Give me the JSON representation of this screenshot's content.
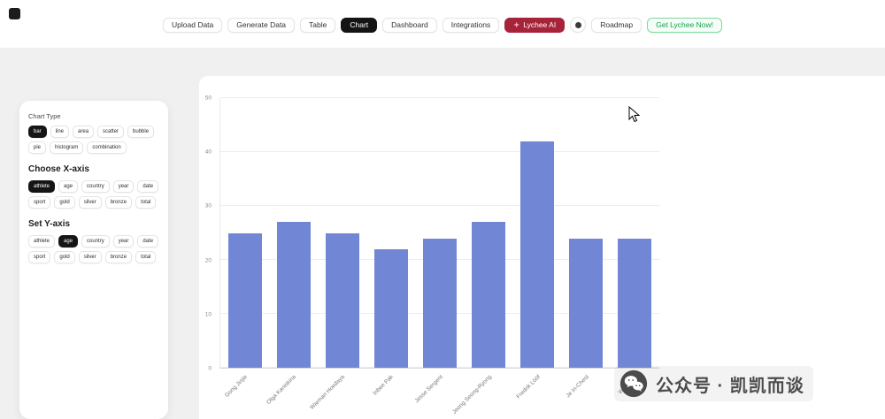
{
  "colors": {
    "bar_blue": "#7186d5",
    "active_black": "#141414",
    "ai_red": "#a62339",
    "cta_green": "#16a34a",
    "background_gray": "#f0f0f1"
  },
  "nav": {
    "buttons": [
      {
        "name": "upload-data",
        "label": "Upload Data",
        "style": "default"
      },
      {
        "name": "generate-data",
        "label": "Generate Data",
        "style": "default"
      },
      {
        "name": "table",
        "label": "Table",
        "style": "default"
      },
      {
        "name": "chart",
        "label": "Chart",
        "style": "active"
      },
      {
        "name": "dashboard",
        "label": "Dashboard",
        "style": "default"
      },
      {
        "name": "integrations",
        "label": "Integrations",
        "style": "default"
      },
      {
        "name": "lychee-ai",
        "label": "Lychee AI",
        "style": "ai",
        "icon": "sparkle-icon"
      },
      {
        "name": "round-icon",
        "label": "",
        "style": "icon",
        "icon": "dot-icon"
      },
      {
        "name": "roadmap",
        "label": "Roadmap",
        "style": "default"
      },
      {
        "name": "get-lychee",
        "label": "Get Lychee Now!",
        "style": "cta"
      }
    ]
  },
  "sidebar": {
    "chart_type_label": "Chart Type",
    "chart_types": [
      {
        "label": "bar",
        "selected": true
      },
      {
        "label": "line",
        "selected": false
      },
      {
        "label": "area",
        "selected": false
      },
      {
        "label": "scatter",
        "selected": false
      },
      {
        "label": "bubble",
        "selected": false
      },
      {
        "label": "pie",
        "selected": false
      },
      {
        "label": "histogram",
        "selected": false
      },
      {
        "label": "combination",
        "selected": false
      }
    ],
    "x_axis_heading": "Choose X-axis",
    "x_fields": [
      {
        "label": "athlete",
        "selected": true
      },
      {
        "label": "age",
        "selected": false
      },
      {
        "label": "country",
        "selected": false
      },
      {
        "label": "year",
        "selected": false
      },
      {
        "label": "date",
        "selected": false
      },
      {
        "label": "sport",
        "selected": false
      },
      {
        "label": "gold",
        "selected": false
      },
      {
        "label": "silver",
        "selected": false
      },
      {
        "label": "bronze",
        "selected": false
      },
      {
        "label": "total",
        "selected": false
      }
    ],
    "y_axis_heading": "Set Y-axis",
    "y_fields": [
      {
        "label": "athlete",
        "selected": false
      },
      {
        "label": "age",
        "selected": true
      },
      {
        "label": "country",
        "selected": false
      },
      {
        "label": "year",
        "selected": false
      },
      {
        "label": "date",
        "selected": false
      },
      {
        "label": "sport",
        "selected": false
      },
      {
        "label": "gold",
        "selected": false
      },
      {
        "label": "silver",
        "selected": false
      },
      {
        "label": "bronze",
        "selected": false
      },
      {
        "label": "total",
        "selected": false
      }
    ]
  },
  "chart_data": {
    "type": "bar",
    "categories": [
      "Gong Jinjie",
      "Olga Kaniskina",
      "Warman Hoedaya",
      "Inbee Pak",
      "Jesse Sergent",
      "Jeong Seong-Ryong",
      "Fredrik Lööf",
      "Je In-Cheol",
      "William U"
    ],
    "values": [
      25,
      27,
      25,
      22,
      24,
      27,
      42,
      24,
      24
    ],
    "title": "",
    "xlabel": "",
    "ylabel": "",
    "ylim": [
      0,
      50
    ],
    "yticks": [
      0,
      10,
      20,
      30,
      40,
      50
    ],
    "bar_color": "#7186d5",
    "grid": true,
    "legend": false
  },
  "watermark": {
    "text": "公众号 · 凯凯而谈"
  }
}
